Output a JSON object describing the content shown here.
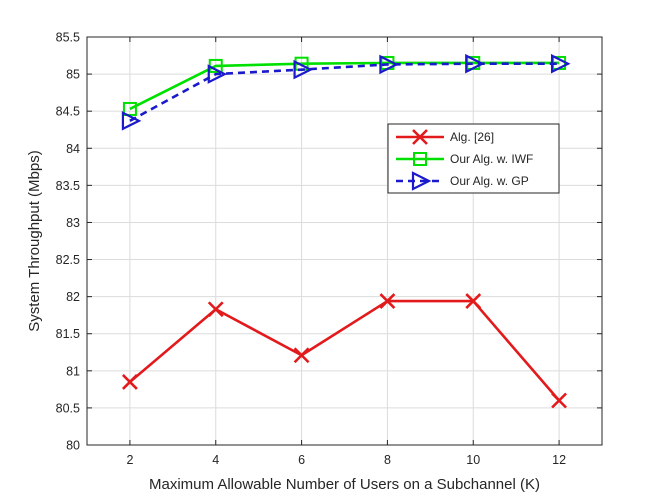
{
  "chart_data": {
    "type": "line",
    "title": "",
    "xlabel": "Maximum Allowable Number of Users on a Subchannel (K)",
    "ylabel": "System Throughput (Mbps)",
    "xlim": [
      1,
      13
    ],
    "ylim": [
      80,
      85.5
    ],
    "xticks": [
      2,
      4,
      6,
      8,
      10,
      12
    ],
    "yticks": [
      80,
      80.5,
      81,
      81.5,
      82,
      82.5,
      83,
      83.5,
      84,
      84.5,
      85,
      85.5
    ],
    "grid": true,
    "legend_position": "upper-right",
    "x": [
      2,
      4,
      6,
      8,
      10,
      12
    ],
    "series": [
      {
        "name": "Alg. [26]",
        "values": [
          80.85,
          81.83,
          81.21,
          81.94,
          81.94,
          80.6
        ],
        "color": "#e31a1c",
        "marker": "x",
        "line_style": "solid"
      },
      {
        "name": "Our Alg. w. IWF",
        "values": [
          84.53,
          85.11,
          85.14,
          85.15,
          85.15,
          85.15
        ],
        "color": "#00e000",
        "marker": "square",
        "line_style": "solid"
      },
      {
        "name": "Our Alg. w. GP",
        "values": [
          84.37,
          85.0,
          85.06,
          85.13,
          85.14,
          85.14
        ],
        "color": "#1a1acc",
        "marker": "triangle-right",
        "line_style": "dashed"
      }
    ]
  }
}
